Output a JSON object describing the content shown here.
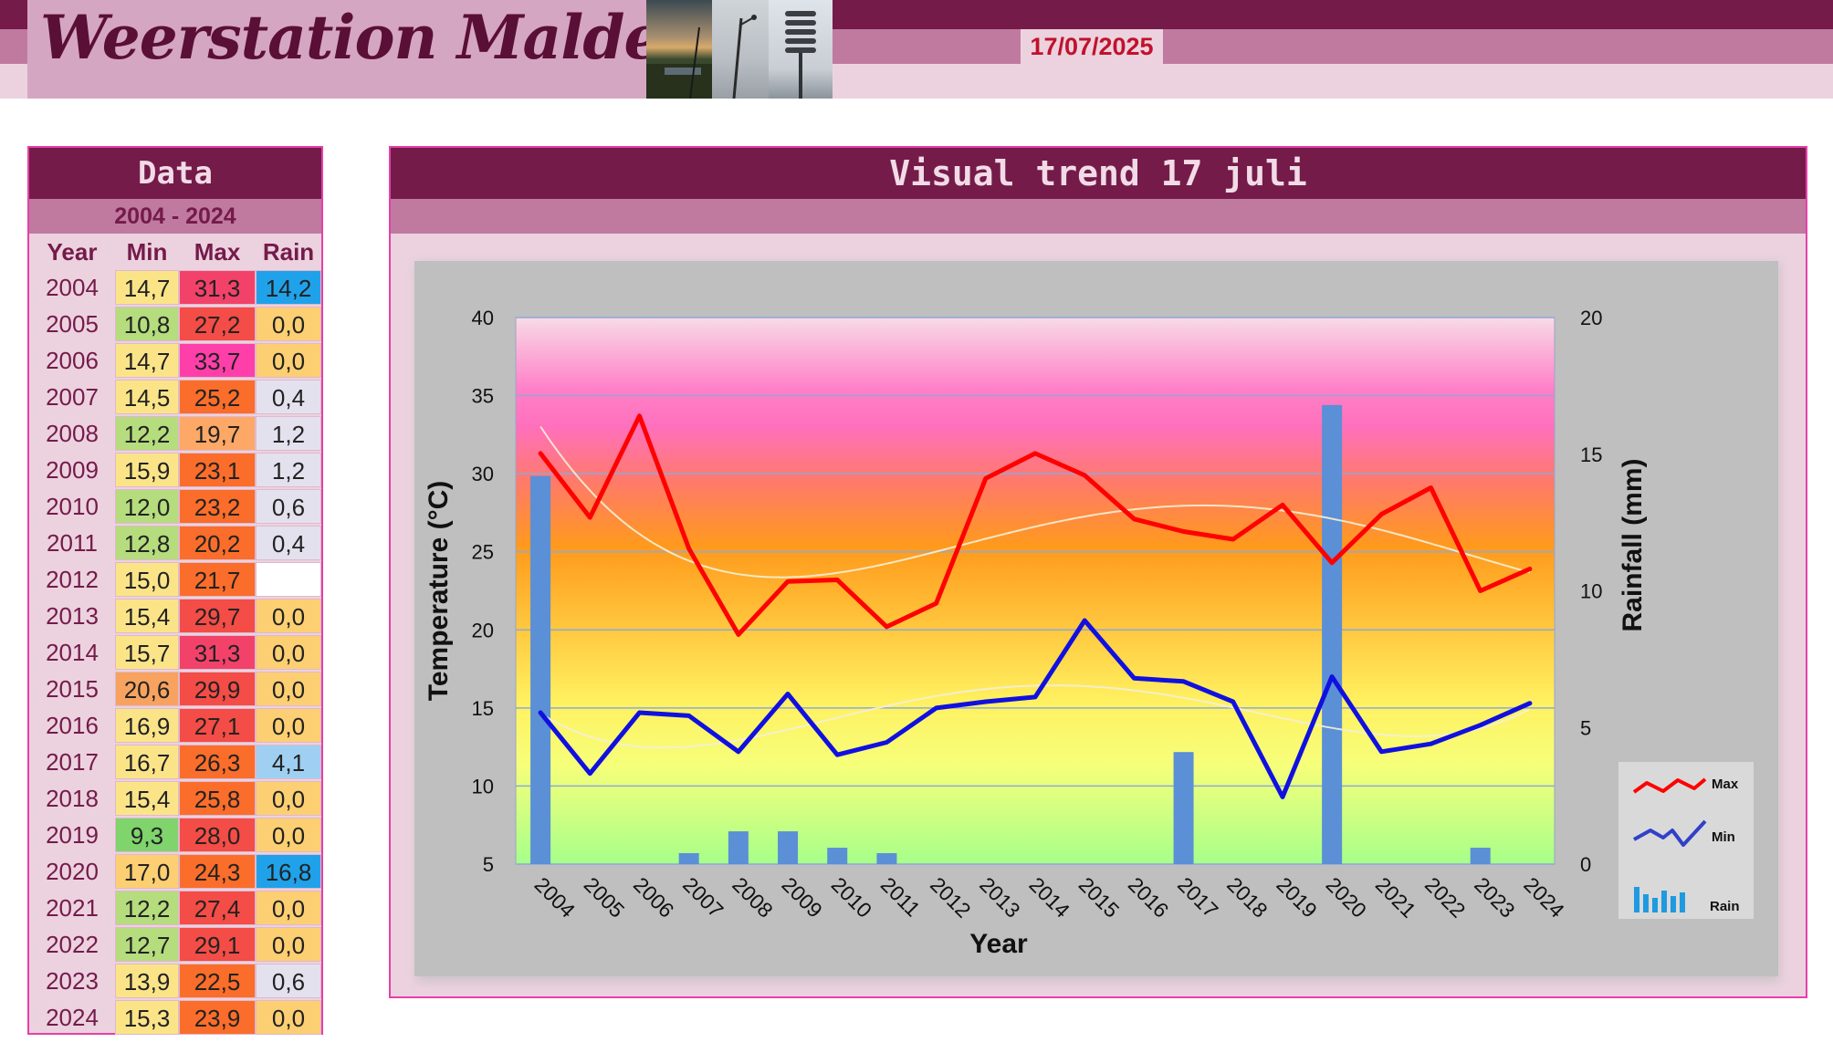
{
  "header": {
    "title": "Weerstation Malderen",
    "date": "17/07/2025"
  },
  "colors": {
    "header_dark": "#741b4a",
    "header_mid": "#c07a9f",
    "header_light": "#ecd2df",
    "max_line": "#ff0000",
    "min_line": "#1010e0",
    "rain_bar": "#5b8fd6"
  },
  "table": {
    "title": "Data",
    "range": "2004 - 2024",
    "headers": {
      "year": "Year",
      "min": "Min",
      "max": "Max",
      "rain": "Rain"
    },
    "rows": [
      {
        "year": "2004",
        "min": "14,7",
        "max": "31,3",
        "rain": "14,2"
      },
      {
        "year": "2005",
        "min": "10,8",
        "max": "27,2",
        "rain": "0,0"
      },
      {
        "year": "2006",
        "min": "14,7",
        "max": "33,7",
        "rain": "0,0"
      },
      {
        "year": "2007",
        "min": "14,5",
        "max": "25,2",
        "rain": "0,4"
      },
      {
        "year": "2008",
        "min": "12,2",
        "max": "19,7",
        "rain": "1,2"
      },
      {
        "year": "2009",
        "min": "15,9",
        "max": "23,1",
        "rain": "1,2"
      },
      {
        "year": "2010",
        "min": "12,0",
        "max": "23,2",
        "rain": "0,6"
      },
      {
        "year": "2011",
        "min": "12,8",
        "max": "20,2",
        "rain": "0,4"
      },
      {
        "year": "2012",
        "min": "15,0",
        "max": "21,7",
        "rain": ""
      },
      {
        "year": "2013",
        "min": "15,4",
        "max": "29,7",
        "rain": "0,0"
      },
      {
        "year": "2014",
        "min": "15,7",
        "max": "31,3",
        "rain": "0,0"
      },
      {
        "year": "2015",
        "min": "20,6",
        "max": "29,9",
        "rain": "0,0"
      },
      {
        "year": "2016",
        "min": "16,9",
        "max": "27,1",
        "rain": "0,0"
      },
      {
        "year": "2017",
        "min": "16,7",
        "max": "26,3",
        "rain": "4,1"
      },
      {
        "year": "2018",
        "min": "15,4",
        "max": "25,8",
        "rain": "0,0"
      },
      {
        "year": "2019",
        "min": "9,3",
        "max": "28,0",
        "rain": "0,0"
      },
      {
        "year": "2020",
        "min": "17,0",
        "max": "24,3",
        "rain": "16,8"
      },
      {
        "year": "2021",
        "min": "12,2",
        "max": "27,4",
        "rain": "0,0"
      },
      {
        "year": "2022",
        "min": "12,7",
        "max": "29,1",
        "rain": "0,0"
      },
      {
        "year": "2023",
        "min": "13,9",
        "max": "22,5",
        "rain": "0,6"
      },
      {
        "year": "2024",
        "min": "15,3",
        "max": "23,9",
        "rain": "0,0"
      }
    ]
  },
  "panel": {
    "title": "Visual trend 17 juli"
  },
  "chart_data": {
    "type": "line",
    "x": [
      "2004",
      "2005",
      "2006",
      "2007",
      "2008",
      "2009",
      "2010",
      "2011",
      "2012",
      "2013",
      "2014",
      "2015",
      "2016",
      "2017",
      "2018",
      "2019",
      "2020",
      "2021",
      "2022",
      "2023",
      "2024"
    ],
    "series": [
      {
        "name": "Max",
        "axis": "left",
        "type": "line",
        "color": "#ff0000",
        "values": [
          31.3,
          27.2,
          33.7,
          25.2,
          19.7,
          23.1,
          23.2,
          20.2,
          21.7,
          29.7,
          31.3,
          29.9,
          27.1,
          26.3,
          25.8,
          28.0,
          24.3,
          27.4,
          29.1,
          22.5,
          23.9
        ]
      },
      {
        "name": "Min",
        "axis": "left",
        "type": "line",
        "color": "#1010e0",
        "values": [
          14.7,
          10.8,
          14.7,
          14.5,
          12.2,
          15.9,
          12.0,
          12.8,
          15.0,
          15.4,
          15.7,
          20.6,
          16.9,
          16.7,
          15.4,
          9.3,
          17.0,
          12.2,
          12.7,
          13.9,
          15.3
        ]
      },
      {
        "name": "Rain",
        "axis": "right",
        "type": "bar",
        "color": "#5b8fd6",
        "values": [
          14.2,
          0,
          0,
          0.4,
          1.2,
          1.2,
          0.6,
          0.4,
          null,
          0,
          0,
          0,
          0,
          4.1,
          0,
          0,
          16.8,
          0,
          0,
          0.6,
          0
        ]
      }
    ],
    "xlabel": "Year",
    "ylabel": "Temperature (°C)",
    "y2label": "Rainfall (mm)",
    "ylim": [
      5,
      40
    ],
    "y2lim": [
      0,
      20
    ],
    "yticks": [
      5,
      10,
      15,
      20,
      25,
      30,
      35,
      40
    ],
    "y2ticks": [
      0,
      5,
      10,
      15,
      20
    ],
    "grid": true,
    "trendlines": true,
    "legend": {
      "position": "bottom-right",
      "entries": [
        "Max",
        "Min",
        "Rain"
      ]
    }
  }
}
